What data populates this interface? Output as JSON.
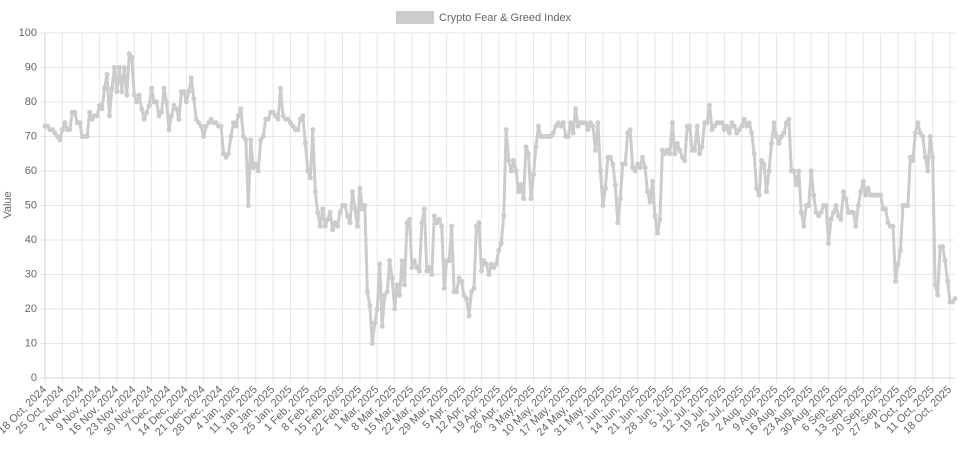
{
  "chart_data": {
    "type": "line",
    "y_label": "Value",
    "ylim": [
      0,
      100
    ],
    "yticks": [
      0,
      10,
      20,
      30,
      40,
      50,
      60,
      70,
      80,
      90,
      100
    ],
    "grid": true,
    "legend": "top",
    "categories": [
      "18 Oct, 2024",
      null,
      null,
      null,
      null,
      null,
      null,
      "25 Oct, 2024",
      null,
      null,
      null,
      null,
      null,
      null,
      null,
      "2 Nov, 2024",
      null,
      null,
      null,
      null,
      null,
      null,
      "9 Nov, 2024",
      null,
      null,
      null,
      null,
      null,
      null,
      "16 Nov, 2024",
      null,
      null,
      null,
      null,
      null,
      null,
      "23 Nov, 2024",
      null,
      null,
      null,
      null,
      null,
      null,
      "30 Nov, 2024",
      null,
      null,
      null,
      null,
      null,
      null,
      "7 Dec, 2024",
      null,
      null,
      null,
      null,
      null,
      null,
      "14 Dec, 2024",
      null,
      null,
      null,
      null,
      null,
      null,
      "21 Dec, 2024",
      null,
      null,
      null,
      null,
      null,
      null,
      "28 Dec, 2024",
      null,
      null,
      null,
      null,
      null,
      null,
      "4 Jan, 2025",
      null,
      null,
      null,
      null,
      null,
      null,
      "11 Jan, 2025",
      null,
      null,
      null,
      null,
      null,
      null,
      "18 Jan, 2025",
      null,
      null,
      null,
      null,
      null,
      null,
      "25 Jan, 2025",
      null,
      null,
      null,
      null,
      null,
      null,
      "1 Feb, 2025",
      null,
      null,
      null,
      null,
      null,
      null,
      "8 Feb, 2025",
      null,
      null,
      null,
      null,
      null,
      null,
      "15 Feb, 2025",
      null,
      null,
      null,
      null,
      null,
      null,
      "22 Feb, 2025",
      null,
      null,
      null,
      null,
      null,
      null,
      "1 Mar, 2025",
      null,
      null,
      null,
      null,
      null,
      null,
      "8 Mar, 2025",
      null,
      null,
      null,
      null,
      null,
      null,
      "15 Mar, 2025",
      null,
      null,
      null,
      null,
      null,
      null,
      "22 Mar, 2025",
      null,
      null,
      null,
      null,
      null,
      null,
      "29 Mar, 2025",
      null,
      null,
      null,
      null,
      null,
      null,
      "5 Apr, 2025",
      null,
      null,
      null,
      null,
      null,
      null,
      "12 Apr, 2025",
      null,
      null,
      null,
      null,
      null,
      null,
      "19 Apr, 2025",
      null,
      null,
      null,
      null,
      null,
      null,
      "26 Apr, 2025",
      null,
      null,
      null,
      null,
      null,
      null,
      "3 May, 2025",
      null,
      null,
      null,
      null,
      null,
      null,
      "10 May, 2025",
      null,
      null,
      null,
      null,
      null,
      null,
      "17 May, 2025",
      null,
      null,
      null,
      null,
      null,
      null,
      "24 May, 2025",
      null,
      null,
      null,
      null,
      null,
      null,
      "31 May, 2025",
      null,
      null,
      null,
      null,
      null,
      null,
      "7 Jun, 2025",
      null,
      null,
      null,
      null,
      null,
      null,
      "14 Jun, 2025",
      null,
      null,
      null,
      null,
      null,
      null,
      "21 Jun, 2025",
      null,
      null,
      null,
      null,
      null,
      null,
      "28 Jun, 2025",
      null,
      null,
      null,
      null,
      null,
      null,
      "5 Jul, 2025",
      null,
      null,
      null,
      null,
      null,
      null,
      "12 Jul, 2025",
      null,
      null,
      null,
      null,
      null,
      null,
      "19 Jul, 2025",
      null,
      null,
      null,
      null,
      null,
      null,
      "26 Jul, 2025",
      null,
      null,
      null,
      null,
      null,
      null,
      "2 Aug, 2025",
      null,
      null,
      null,
      null,
      null,
      null,
      "9 Aug, 2025",
      null,
      null,
      null,
      null,
      null,
      null,
      "16 Aug, 2025",
      null,
      null,
      null,
      null,
      null,
      null,
      "23 Aug, 2025",
      null,
      null,
      null,
      null,
      null,
      null,
      "30 Aug, 2025",
      null,
      null,
      null,
      null,
      null,
      null,
      "6 Sep, 2025",
      null,
      null,
      null,
      null,
      null,
      null,
      "13 Sep, 2025",
      null,
      null,
      null,
      null,
      null,
      null,
      "20 Sep, 2025",
      null,
      null,
      null,
      null,
      null,
      null,
      "27 Sep, 2025",
      null,
      null,
      null,
      null,
      null,
      null,
      "4 Oct, 2025",
      null,
      null,
      null,
      null,
      null,
      null,
      "11 Oct, 2025",
      null,
      null,
      null,
      null,
      null,
      null,
      "18 Oct, 2025",
      null,
      null
    ],
    "series": [
      {
        "name": "Crypto Fear & Greed Index",
        "color": "#cccccc",
        "values": [
          73,
          73,
          72,
          72,
          71,
          70,
          69,
          72,
          74,
          72,
          72,
          77,
          77,
          74,
          74,
          70,
          70,
          70,
          77,
          75,
          76,
          76,
          79,
          78,
          84,
          88,
          76,
          84,
          90,
          83,
          90,
          83,
          90,
          82,
          94,
          93,
          82,
          80,
          82,
          78,
          75,
          77,
          79,
          84,
          80,
          80,
          76,
          77,
          84,
          80,
          72,
          76,
          79,
          78,
          75,
          83,
          83,
          80,
          83,
          87,
          81,
          75,
          74,
          73,
          70,
          73,
          74,
          75,
          74,
          74,
          73,
          73,
          65,
          64,
          65,
          70,
          74,
          73,
          76,
          78,
          70,
          69,
          50,
          69,
          61,
          62,
          60,
          69,
          70,
          75,
          75,
          77,
          77,
          76,
          75,
          84,
          76,
          75,
          75,
          74,
          73,
          72,
          72,
          75,
          76,
          68,
          60,
          58,
          72,
          54,
          48,
          44,
          49,
          44,
          46,
          48,
          43,
          45,
          44,
          48,
          50,
          50,
          47,
          45,
          54,
          49,
          44,
          55,
          49,
          50,
          25,
          21,
          10,
          16,
          20,
          33,
          15,
          24,
          25,
          34,
          29,
          20,
          27,
          24,
          34,
          27,
          45,
          46,
          32,
          34,
          32,
          31,
          45,
          49,
          31,
          32,
          30,
          47,
          45,
          46,
          44,
          26,
          34,
          34,
          44,
          25,
          25,
          29,
          28,
          24,
          23,
          18,
          25,
          26,
          44,
          45,
          31,
          34,
          33,
          30,
          33,
          32,
          33,
          37,
          39,
          47,
          72,
          63,
          60,
          63,
          60,
          54,
          56,
          52,
          67,
          65,
          52,
          59,
          67,
          73,
          70,
          70,
          70,
          70,
          70,
          71,
          73,
          74,
          73,
          74,
          70,
          70,
          74,
          71,
          78,
          73,
          74,
          74,
          74,
          72,
          74,
          73,
          66,
          74,
          60,
          50,
          55,
          64,
          64,
          62,
          56,
          45,
          52,
          62,
          62,
          71,
          72,
          61,
          60,
          62,
          61,
          64,
          61,
          54,
          51,
          57,
          47,
          42,
          46,
          66,
          65,
          66,
          65,
          74,
          65,
          68,
          66,
          64,
          63,
          73,
          73,
          66,
          66,
          73,
          65,
          67,
          74,
          74,
          79,
          72,
          73,
          74,
          74,
          74,
          72,
          73,
          71,
          74,
          73,
          71,
          72,
          73,
          75,
          73,
          74,
          71,
          65,
          55,
          53,
          63,
          62,
          54,
          60,
          68,
          74,
          70,
          68,
          70,
          71,
          74,
          75,
          60,
          60,
          56,
          60,
          48,
          44,
          50,
          50,
          60,
          53,
          48,
          47,
          48,
          50,
          50,
          39,
          46,
          48,
          50,
          47,
          46,
          54,
          52,
          48,
          48,
          48,
          44,
          50,
          54,
          57,
          53,
          55,
          53,
          53,
          53,
          53,
          53,
          49,
          49,
          45,
          44,
          44,
          28,
          33,
          37,
          50,
          50,
          50,
          64,
          63,
          71,
          74,
          71,
          70,
          64,
          60,
          70,
          64,
          27,
          24,
          38,
          38,
          34,
          28,
          22,
          22,
          23
        ]
      }
    ]
  }
}
